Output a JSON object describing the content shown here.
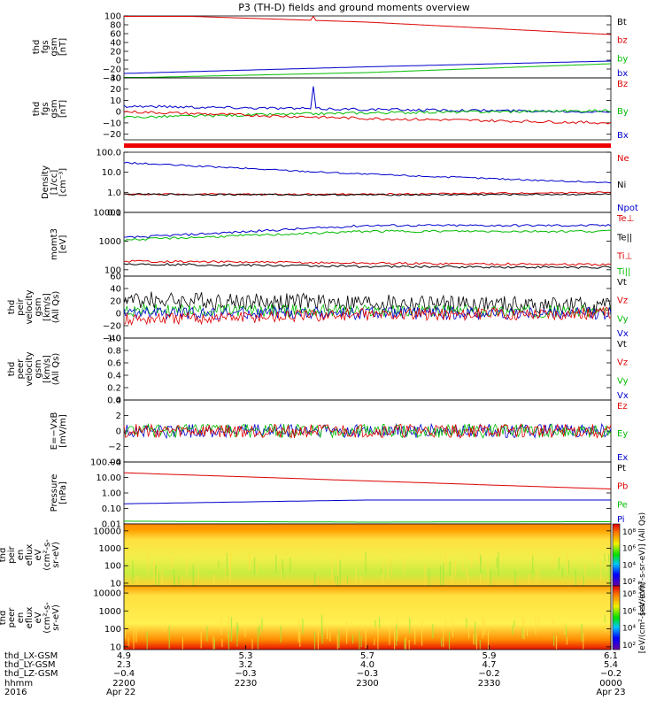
{
  "title": "P3 (TH-D) fields and ground moments overview",
  "chart_data": [
    {
      "type": "line",
      "ylabel": [
        "thd",
        "fgs",
        "gsm",
        "[nT]"
      ],
      "ylim": [
        -40,
        100
      ],
      "yticks": [
        "100",
        "80",
        "60",
        "40",
        "20",
        "0",
        "−20",
        "−40"
      ],
      "ytick_values": [
        100,
        80,
        60,
        40,
        20,
        0,
        -20,
        -40
      ],
      "legend": [
        {
          "name": "Bt",
          "color": "#000000"
        },
        {
          "name": "bz",
          "color": "#dd0000"
        },
        {
          "name": "by",
          "color": "#00bb00"
        },
        {
          "name": "bx",
          "color": "#0000cc"
        }
      ],
      "series": [
        {
          "name": "Bt",
          "color": "#dd0000",
          "points": [
            [
              0,
              104
            ],
            [
              0.5,
              86
            ],
            [
              1,
              58
            ]
          ]
        },
        {
          "name": "by",
          "color": "#0000cc",
          "points": [
            [
              0,
              -30
            ],
            [
              0.5,
              -15
            ],
            [
              1,
              -2
            ]
          ]
        },
        {
          "name": "bx",
          "color": "#00bb00",
          "points": [
            [
              0,
              -40
            ],
            [
              0.5,
              -28
            ],
            [
              1,
              -8
            ]
          ]
        }
      ]
    },
    {
      "type": "line",
      "ylabel": [
        "thd",
        "fgs",
        "gsm",
        "[nT]"
      ],
      "ylim": [
        -25,
        30
      ],
      "yticks": [
        "30",
        "20",
        "10",
        "0",
        "−10",
        "−20"
      ],
      "ytick_values": [
        30,
        20,
        10,
        0,
        -10,
        -20
      ],
      "legend": [
        {
          "name": "Bz",
          "color": "#dd0000"
        },
        {
          "name": "By",
          "color": "#00bb00"
        },
        {
          "name": "Bx",
          "color": "#0000cc"
        }
      ],
      "series": [
        {
          "name": "Bz",
          "color": "#0000cc",
          "points": [
            [
              0,
              5
            ],
            [
              0.5,
              2
            ],
            [
              1,
              0
            ]
          ]
        },
        {
          "name": "By",
          "color": "#00bb00",
          "points": [
            [
              0,
              -5
            ],
            [
              0.5,
              -1
            ],
            [
              1,
              1
            ]
          ]
        },
        {
          "name": "Bx",
          "color": "#dd0000",
          "points": [
            [
              0,
              0
            ],
            [
              0.5,
              -6
            ],
            [
              1,
              -10
            ]
          ]
        }
      ]
    },
    {
      "type": "line",
      "ylabel": [
        "Density",
        "[1/cc]",
        "[cm⁻³]"
      ],
      "yscale": "log",
      "ylim": [
        0.1,
        100
      ],
      "yticks": [
        "100.0",
        "10.0",
        "1.0",
        "0.1"
      ],
      "ytick_values": [
        100,
        10,
        1,
        0.1
      ],
      "legend": [
        {
          "name": "Ne",
          "color": "#dd0000"
        },
        {
          "name": "Ni",
          "color": "#000000"
        },
        {
          "name": "Npot",
          "color": "#0000cc"
        }
      ],
      "series": [
        {
          "name": "Ni",
          "color": "#0000cc",
          "points": [
            [
              0,
              30
            ],
            [
              0.5,
              8
            ],
            [
              1,
              3
            ]
          ]
        },
        {
          "name": "Ne",
          "color": "#dd0000",
          "points": [
            [
              0,
              0.8
            ],
            [
              0.5,
              0.8
            ],
            [
              1,
              1
            ]
          ]
        },
        {
          "name": "Npot",
          "color": "#000000",
          "points": [
            [
              0,
              0.8
            ],
            [
              0.5,
              0.75
            ],
            [
              1,
              0.8
            ]
          ]
        }
      ]
    },
    {
      "type": "line",
      "ylabel": [
        "momt3",
        "[eV]"
      ],
      "yscale": "log",
      "ylim": [
        60,
        10000
      ],
      "yticks": [
        "10000",
        "1000",
        "100"
      ],
      "ytick_values": [
        10000,
        1000,
        100
      ],
      "legend": [
        {
          "name": "Te⊥",
          "color": "#dd0000"
        },
        {
          "name": "Te||",
          "color": "#000000"
        },
        {
          "name": "Ti⊥",
          "color": "#dd0000"
        },
        {
          "name": "Ti||",
          "color": "#00bb00"
        }
      ],
      "series": [
        {
          "name": "Ti⊥",
          "color": "#0000cc",
          "points": [
            [
              0,
              1300
            ],
            [
              0.5,
              3500
            ],
            [
              1,
              3500
            ]
          ]
        },
        {
          "name": "Ti||",
          "color": "#00bb00",
          "points": [
            [
              0,
              1100
            ],
            [
              0.5,
              2200
            ],
            [
              1,
              2200
            ]
          ]
        },
        {
          "name": "Te⊥",
          "color": "#dd0000",
          "points": [
            [
              0,
              200
            ],
            [
              0.5,
              170
            ],
            [
              1,
              150
            ]
          ]
        },
        {
          "name": "Te||",
          "color": "#000000",
          "points": [
            [
              0,
              160
            ],
            [
              0.5,
              130
            ],
            [
              1,
              120
            ]
          ]
        }
      ]
    },
    {
      "type": "line",
      "ylabel": [
        "thd",
        "peir",
        "velocity",
        "gsm",
        "[km/s]",
        "(All Qs)"
      ],
      "ylim": [
        -40,
        60
      ],
      "yticks": [
        "60",
        "40",
        "20",
        "0",
        "−20",
        "−40"
      ],
      "ytick_values": [
        60,
        40,
        20,
        0,
        -20,
        -40
      ],
      "legend": [
        {
          "name": "Vt",
          "color": "#000000"
        },
        {
          "name": "Vz",
          "color": "#dd0000"
        },
        {
          "name": "Vy",
          "color": "#00bb00"
        },
        {
          "name": "Vx",
          "color": "#0000cc"
        }
      ],
      "series": [
        {
          "name": "Vt",
          "color": "#000000",
          "points": [
            [
              0,
              22
            ],
            [
              1,
              12
            ]
          ]
        },
        {
          "name": "Vy",
          "color": "#00bb00",
          "points": [
            [
              0,
              5
            ],
            [
              1,
              3
            ]
          ]
        },
        {
          "name": "Vx",
          "color": "#0000cc",
          "points": [
            [
              0,
              0
            ],
            [
              1,
              0
            ]
          ]
        },
        {
          "name": "Vz",
          "color": "#dd0000",
          "points": [
            [
              0,
              -10
            ],
            [
              0.5,
              -2
            ],
            [
              1,
              0
            ]
          ]
        }
      ]
    },
    {
      "type": "line",
      "ylabel": [
        "thd",
        "peer",
        "velocity",
        "gsm",
        "[km/s]",
        "(All Qs)"
      ],
      "ylim": [
        0,
        1
      ],
      "yticks": [
        "1.0",
        "0.8",
        "0.6",
        "0.4",
        "0.2",
        "0.0"
      ],
      "ytick_values": [
        1,
        0.8,
        0.6,
        0.4,
        0.2,
        0
      ],
      "legend": [
        {
          "name": "Vt",
          "color": "#000000"
        },
        {
          "name": "Vz",
          "color": "#dd0000"
        },
        {
          "name": "Vy",
          "color": "#00bb00"
        },
        {
          "name": "Vx",
          "color": "#0000cc"
        }
      ],
      "series": []
    },
    {
      "type": "line",
      "ylabel": [
        "E=−VxB",
        "[mV/m]"
      ],
      "ylim": [
        -4,
        4
      ],
      "yticks": [
        "4",
        "2",
        "0",
        "−2",
        "−4"
      ],
      "ytick_values": [
        4,
        2,
        0,
        -2,
        -4
      ],
      "legend": [
        {
          "name": "Ez",
          "color": "#dd0000"
        },
        {
          "name": "Ey",
          "color": "#00bb00"
        },
        {
          "name": "Ex",
          "color": "#0000cc"
        }
      ],
      "series": [
        {
          "name": "Ex",
          "color": "#0000cc",
          "points": [
            [
              0,
              0
            ],
            [
              1,
              0
            ]
          ]
        },
        {
          "name": "Ey",
          "color": "#00bb00",
          "points": [
            [
              0,
              0
            ],
            [
              1,
              0
            ]
          ]
        },
        {
          "name": "Ez",
          "color": "#dd0000",
          "points": [
            [
              0,
              0
            ],
            [
              1,
              0
            ]
          ]
        }
      ]
    },
    {
      "type": "line",
      "ylabel": [
        "Pressure",
        "[nPa]"
      ],
      "yscale": "log",
      "ylim": [
        0.01,
        100
      ],
      "yticks": [
        "100.00",
        "10.00",
        "1.00",
        "0.10",
        "0.01"
      ],
      "ytick_values": [
        100,
        10,
        1,
        0.1,
        0.01
      ],
      "legend": [
        {
          "name": "Pt",
          "color": "#000000"
        },
        {
          "name": "Pb",
          "color": "#dd0000"
        },
        {
          "name": "Pe",
          "color": "#00bb00"
        },
        {
          "name": "Pi",
          "color": "#0000cc"
        }
      ],
      "series": [
        {
          "name": "Pt",
          "color": "#dd0000",
          "points": [
            [
              0,
              20
            ],
            [
              0.5,
              6
            ],
            [
              1,
              1.8
            ]
          ]
        },
        {
          "name": "Pe",
          "color": "#0000cc",
          "points": [
            [
              0,
              0.2
            ],
            [
              0.5,
              0.35
            ],
            [
              1,
              0.35
            ]
          ]
        },
        {
          "name": "Pi",
          "color": "#00bb00",
          "points": [
            [
              0,
              0.015
            ],
            [
              0.5,
              0.013
            ],
            [
              1,
              0.014
            ]
          ]
        }
      ]
    },
    {
      "type": "heatmap",
      "ylabel": [
        "thd",
        "peir",
        "en",
        "eflux",
        "eV",
        "(cm²‑s‑",
        "sr‑eV)"
      ],
      "yscale": "log",
      "ylim": [
        7,
        25000
      ],
      "yticks": [
        "10000",
        "1000",
        "100",
        "10"
      ],
      "ytick_values": [
        10000,
        1000,
        100,
        10
      ],
      "colorbar_label": "[eV/(cm²‑s‑sr‑eV)] (All Qs)",
      "colorbar_ticks": [
        "10⁸",
        "10⁶",
        "10⁴",
        "10²"
      ]
    },
    {
      "type": "heatmap",
      "ylabel": [
        "thd",
        "peer",
        "en",
        "eflux",
        "eV",
        "(cm²‑s‑",
        "sr‑eV)"
      ],
      "yscale": "log",
      "ylim": [
        7,
        25000
      ],
      "yticks": [
        "10000",
        "1000",
        "100",
        "10"
      ],
      "ytick_values": [
        10000,
        1000,
        100,
        10
      ],
      "colorbar_label": "[eV/(cm²‑s‑sr‑eV)]",
      "colorbar_ticks": [
        "10⁸",
        "10⁶",
        "10⁴",
        "10²"
      ]
    }
  ],
  "time_axis": {
    "row_labels": [
      "thd_LX-GSM",
      "thd_LY-GSM",
      "thd_LZ-GSM",
      "hhmm",
      "2016"
    ],
    "columns": [
      [
        "4.9",
        "2.3",
        "−0.4",
        "2200",
        "Apr 22"
      ],
      [
        "5.3",
        "3.2",
        "−0.3",
        "2230",
        ""
      ],
      [
        "5.7",
        "4.0",
        "−0.3",
        "2300",
        ""
      ],
      [
        "5.9",
        "4.7",
        "−0.2",
        "2330",
        ""
      ],
      [
        "6.1",
        "5.4",
        "−0.2",
        "0000",
        "Apr 23"
      ]
    ]
  }
}
